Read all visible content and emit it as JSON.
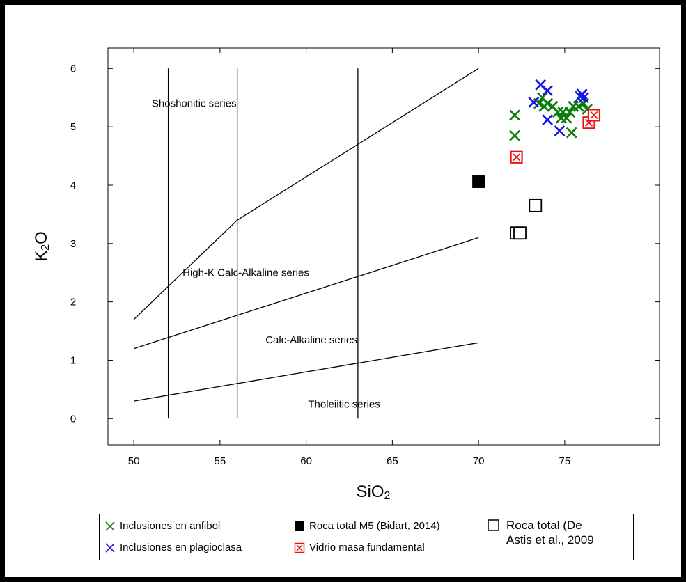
{
  "colors": {
    "axis": "#000000",
    "green": "#0a7d0a",
    "blue": "#1414e6",
    "red": "#ee1111",
    "black": "#000000"
  },
  "chart_data": {
    "type": "scatter",
    "title": "",
    "xlabel_main": "SiO",
    "xlabel_sub": "2",
    "ylabel_main": "K",
    "ylabel_sub": "2",
    "ylabel_tail": "O",
    "xlim": [
      48.5,
      80.5
    ],
    "ylim": [
      -0.45,
      6.35
    ],
    "x_ticks": [
      50,
      55,
      60,
      65,
      70,
      75
    ],
    "y_ticks": [
      0,
      1,
      2,
      3,
      4,
      5,
      6
    ],
    "grid": false,
    "legend_position": "bottom",
    "boundary_lines": [
      {
        "name": "Shoshonitic / High-K boundary",
        "points": [
          [
            50,
            1.7
          ],
          [
            56,
            3.4
          ],
          [
            70,
            6.0
          ]
        ]
      },
      {
        "name": "High-K / Calc-Alkaline boundary",
        "points": [
          [
            50,
            1.2
          ],
          [
            70,
            3.1
          ]
        ]
      },
      {
        "name": "Calc-Alkaline / Tholeiitic boundary",
        "points": [
          [
            50,
            0.3
          ],
          [
            70,
            1.3
          ]
        ]
      },
      {
        "name": "52 wt% divider",
        "points": [
          [
            52,
            0
          ],
          [
            52,
            6.0
          ]
        ]
      },
      {
        "name": "56 wt% divider",
        "points": [
          [
            56,
            0
          ],
          [
            56,
            6.0
          ]
        ]
      },
      {
        "name": "63 wt% divider",
        "points": [
          [
            63,
            0
          ],
          [
            63,
            6.0
          ]
        ]
      }
    ],
    "field_labels": [
      {
        "text": "Shoshonitic series",
        "x": 53.5,
        "y": 5.4
      },
      {
        "text": "High-K Calc-Alkaline series",
        "x": 56.5,
        "y": 2.5
      },
      {
        "text": "Calc-Alkaline series",
        "x": 60.3,
        "y": 1.35
      },
      {
        "text": "Tholeiitic series",
        "x": 62.2,
        "y": 0.25
      }
    ],
    "series": [
      {
        "name": "Inclusiones en anfibol",
        "marker": "x",
        "color": "#0a7d0a",
        "points": [
          [
            72.1,
            5.2
          ],
          [
            72.1,
            4.85
          ],
          [
            73.5,
            5.4
          ],
          [
            73.7,
            5.5
          ],
          [
            73.8,
            5.35
          ],
          [
            74.0,
            5.4
          ],
          [
            74.3,
            5.35
          ],
          [
            74.6,
            5.25
          ],
          [
            74.8,
            5.15
          ],
          [
            74.9,
            5.25
          ],
          [
            75.1,
            5.15
          ],
          [
            75.3,
            5.25
          ],
          [
            75.5,
            5.35
          ],
          [
            75.8,
            5.35
          ],
          [
            76.1,
            5.4
          ],
          [
            76.3,
            5.3
          ],
          [
            75.4,
            4.9
          ]
        ]
      },
      {
        "name": "Inclusiones en plagioclasa",
        "marker": "x",
        "color": "#1414e6",
        "points": [
          [
            73.2,
            5.42
          ],
          [
            73.6,
            5.72
          ],
          [
            74.0,
            5.62
          ],
          [
            74.0,
            5.12
          ],
          [
            74.7,
            4.93
          ],
          [
            75.9,
            5.52
          ],
          [
            76.0,
            5.56
          ],
          [
            76.1,
            5.5
          ]
        ]
      },
      {
        "name": "Roca total M5 (Bidart, 2014)",
        "marker": "filled-square",
        "color": "#000000",
        "points": [
          [
            70.0,
            4.06
          ]
        ]
      },
      {
        "name": "Vidrio masa fundamental",
        "marker": "boxed-x",
        "color": "#ee1111",
        "points": [
          [
            72.2,
            4.48
          ],
          [
            76.4,
            5.07
          ],
          [
            76.7,
            5.2
          ]
        ]
      },
      {
        "name": "Roca total (De Astis et al., 2009",
        "marker": "open-square",
        "color": "#000000",
        "points": [
          [
            72.2,
            3.18
          ],
          [
            72.4,
            3.18
          ],
          [
            73.3,
            3.65
          ]
        ]
      }
    ]
  },
  "legend": [
    {
      "label": "Inclusiones en anfibol",
      "marker": "x",
      "color": "#0a7d0a"
    },
    {
      "label": "Inclusiones en plagioclasa",
      "marker": "x",
      "color": "#1414e6"
    },
    {
      "label": "Roca total M5 (Bidart, 2014)",
      "marker": "filled-square",
      "color": "#000000"
    },
    {
      "label": "Vidrio masa fundamental",
      "marker": "boxed-x",
      "color": "#ee1111"
    },
    {
      "label": "Roca total (De Astis et al., 2009",
      "marker": "open-square",
      "color": "#000000"
    }
  ]
}
